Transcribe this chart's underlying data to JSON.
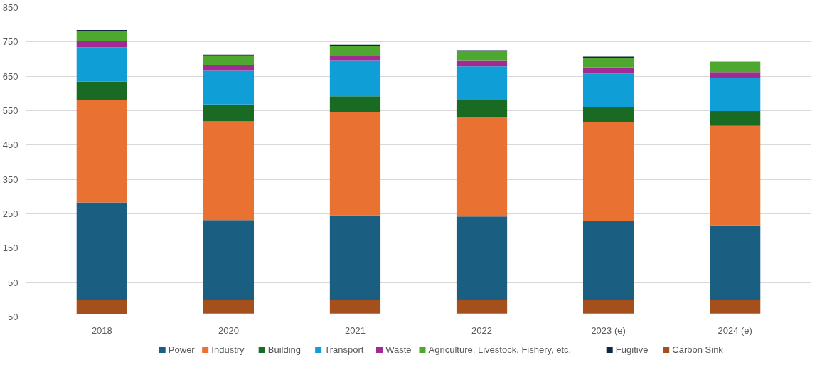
{
  "chart_data": {
    "type": "bar",
    "stacked": true,
    "categories": [
      "2018",
      "2020",
      "2021",
      "2022",
      "2023 (e)",
      "2024 (e)"
    ],
    "series": [
      {
        "name": "Power",
        "color": "#1a5f82",
        "values": [
          283,
          232,
          246,
          242,
          230,
          217
        ]
      },
      {
        "name": "Industry",
        "color": "#e97132",
        "values": [
          299,
          287,
          301,
          289,
          287,
          289
        ]
      },
      {
        "name": "Building",
        "color": "#196b24",
        "values": [
          53,
          49,
          45,
          49,
          43,
          43
        ]
      },
      {
        "name": "Transport",
        "color": "#0f9ed5",
        "values": [
          99,
          98,
          103,
          99,
          98,
          97
        ]
      },
      {
        "name": "Waste",
        "color": "#a02b93",
        "values": [
          20,
          17,
          14,
          16,
          18,
          16
        ]
      },
      {
        "name": "Agriculture, Livestock, Fishery, etc.",
        "color": "#4ea72e",
        "values": [
          27,
          28,
          29,
          27,
          27,
          31
        ]
      },
      {
        "name": "Fugitive",
        "color": "#0e2841",
        "values": [
          4,
          2,
          4,
          4,
          4,
          null
        ]
      },
      {
        "name": "Carbon Sink",
        "color": "#a5501c",
        "values": [
          -43,
          -40,
          -40,
          -40,
          -40,
          -40
        ]
      }
    ],
    "ylim": [
      -50,
      850
    ],
    "yticks": [
      -50,
      50,
      150,
      250,
      350,
      450,
      550,
      650,
      750,
      850
    ],
    "grid": "y",
    "legend": "bottom"
  }
}
